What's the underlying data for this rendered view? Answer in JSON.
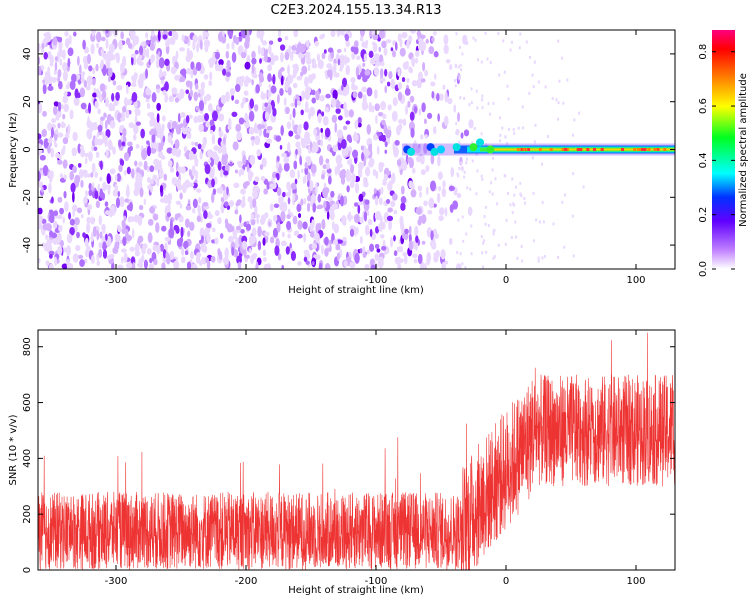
{
  "title": "C2E3.2024.155.13.34.R13",
  "chart_data": [
    {
      "type": "heatmap",
      "xlabel": "Height of straight line (km)",
      "ylabel": "Frequency (Hz)",
      "xlim": [
        -360,
        130
      ],
      "ylim": [
        -50,
        50
      ],
      "xticks": [
        -300,
        -200,
        -100,
        0,
        100
      ],
      "yticks": [
        -40,
        -20,
        0,
        20,
        40
      ],
      "noise_region_xlim": [
        -360,
        -35
      ],
      "signal_line": {
        "frequency": 0,
        "x_start": -80,
        "x_end": 130
      },
      "colorbar": {
        "label": "Normalized spectral amplitude",
        "range": [
          0.0,
          0.88
        ],
        "ticks": [
          0.0,
          0.2,
          0.4,
          0.6,
          0.8
        ]
      }
    },
    {
      "type": "line",
      "xlabel": "Height of straight line (km)",
      "ylabel": "SNR (10 * v/v)",
      "xlim": [
        -360,
        130
      ],
      "ylim": [
        0,
        860
      ],
      "xticks": [
        -300,
        -200,
        -100,
        0,
        100
      ],
      "yticks": [
        0,
        200,
        400,
        600,
        800
      ],
      "color": "#ee3333",
      "segments": [
        {
          "x": [
            -360,
            -35
          ],
          "baseline": 140,
          "amplitude": 140,
          "peak": 500
        },
        {
          "x": [
            -35,
            20
          ],
          "baseline": 250,
          "amplitude": 220,
          "peak": 600
        },
        {
          "x": [
            20,
            130
          ],
          "baseline": 500,
          "amplitude": 200,
          "peak": 860
        }
      ]
    }
  ]
}
